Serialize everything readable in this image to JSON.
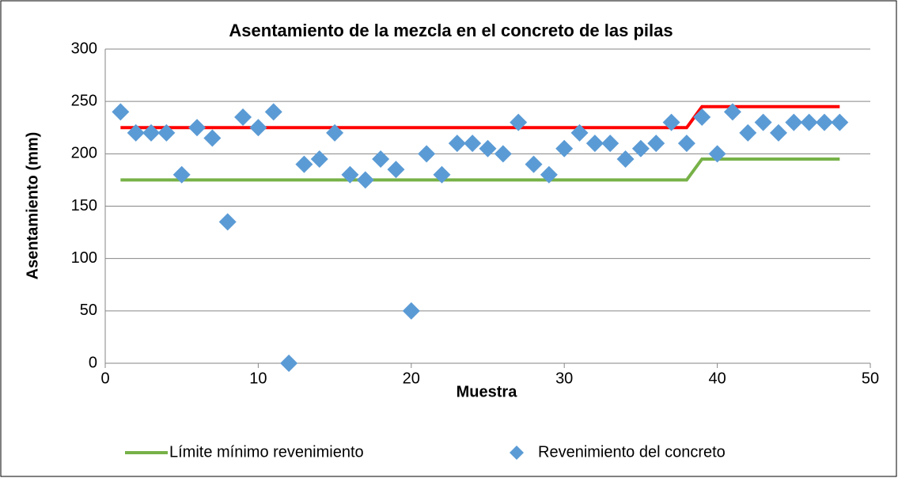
{
  "chart_data": {
    "type": "scatter",
    "title": "Asentamiento de la mezcla en el concreto de las pilas",
    "xlabel": "Muestra",
    "ylabel": "Asentamiento (mm)",
    "xlim": [
      0,
      50
    ],
    "xticks": [
      0,
      10,
      20,
      30,
      40,
      50
    ],
    "ylim": [
      0,
      300
    ],
    "yticks": [
      0,
      50,
      100,
      150,
      200,
      250,
      300
    ],
    "grid": true,
    "legend": "bottom",
    "series": [
      {
        "name": "Límite mínimo revenimiento",
        "type": "line",
        "color": "#77b148",
        "x": [
          1,
          38,
          39,
          48
        ],
        "values": [
          175,
          175,
          195,
          195
        ]
      },
      {
        "type": "line",
        "color": "#ff0000",
        "x": [
          1,
          38,
          39,
          48
        ],
        "values": [
          225,
          225,
          245,
          245
        ]
      },
      {
        "name": "Revenimiento del concreto",
        "type": "scatter",
        "color": "#5b9bd5",
        "x": [
          1,
          2,
          3,
          4,
          5,
          6,
          7,
          8,
          9,
          10,
          11,
          12,
          13,
          14,
          15,
          16,
          17,
          18,
          19,
          20,
          21,
          22,
          23,
          24,
          25,
          26,
          27,
          28,
          29,
          30,
          31,
          32,
          33,
          34,
          35,
          36,
          37,
          38,
          39,
          40,
          41,
          42,
          43,
          44,
          45,
          46,
          47,
          48
        ],
        "values": [
          240,
          220,
          220,
          220,
          180,
          225,
          215,
          135,
          235,
          225,
          240,
          0,
          190,
          195,
          220,
          180,
          175,
          195,
          185,
          50,
          200,
          180,
          210,
          210,
          205,
          200,
          230,
          190,
          180,
          205,
          220,
          210,
          210,
          195,
          205,
          210,
          230,
          210,
          235,
          200,
          240,
          220,
          230,
          220,
          230,
          230,
          230,
          230
        ]
      }
    ]
  }
}
